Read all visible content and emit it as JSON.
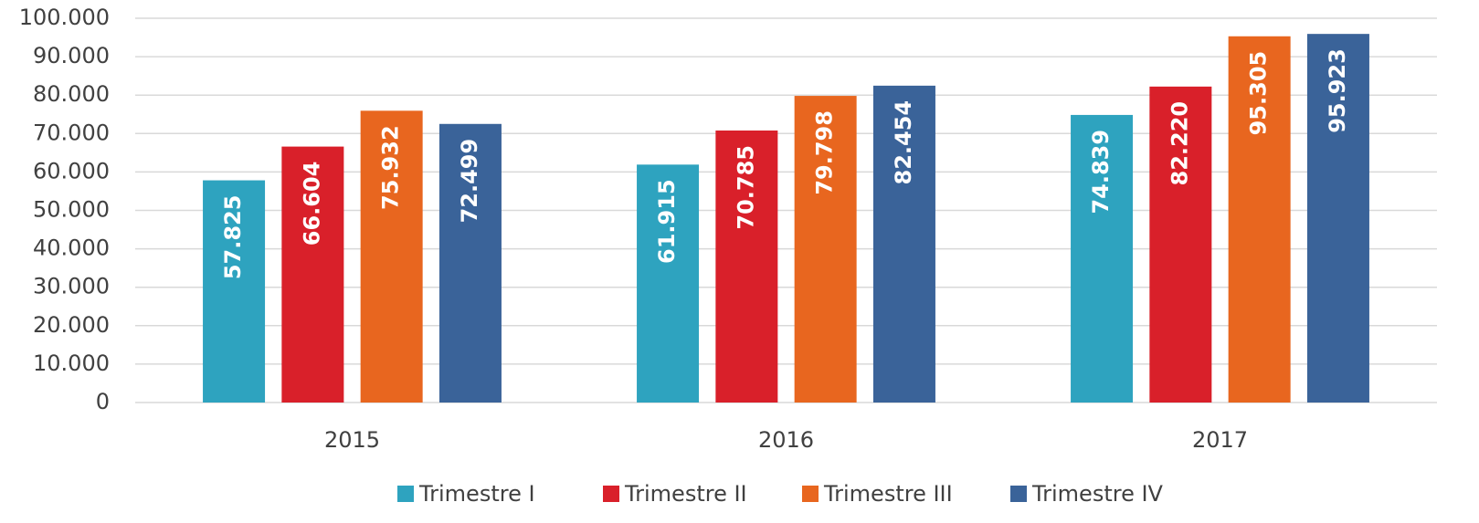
{
  "chart_data": {
    "type": "bar",
    "categories": [
      "2015",
      "2016",
      "2017"
    ],
    "series": [
      {
        "name": "Trimestre I",
        "color": "#2ea3bf",
        "values": [
          57825,
          61915,
          74839
        ],
        "value_labels": [
          "57.825",
          "61.915",
          "74.839"
        ]
      },
      {
        "name": "Trimestre II",
        "color": "#d9202a",
        "values": [
          66604,
          70785,
          82220
        ],
        "value_labels": [
          "66.604",
          "70.785",
          "82.220"
        ]
      },
      {
        "name": "Trimestre III",
        "color": "#e8661f",
        "values": [
          75932,
          79798,
          95305
        ],
        "value_labels": [
          "75.932",
          "79.798",
          "95.305"
        ]
      },
      {
        "name": "Trimestre IV",
        "color": "#3a6399",
        "values": [
          72499,
          82454,
          95923
        ],
        "value_labels": [
          "72.499",
          "82.454",
          "95.923"
        ]
      }
    ],
    "ylim": [
      0,
      100000
    ],
    "yticks": [
      0,
      {
        "value": 10000,
        "label": "10.000"
      },
      {
        "value": 20000,
        "label": "20.000"
      },
      {
        "value": 30000,
        "label": "30.000"
      },
      {
        "value": 40000,
        "label": "40.000"
      },
      {
        "value": 50000,
        "label": "50.000"
      },
      {
        "value": 60000,
        "label": "60.000"
      },
      {
        "value": 70000,
        "label": "70.000"
      },
      {
        "value": 80000,
        "label": "80.000"
      },
      {
        "value": 90000,
        "label": "90.000"
      },
      {
        "value": 100000,
        "label": "100.000"
      }
    ],
    "grid": true,
    "legend": "bottom"
  }
}
